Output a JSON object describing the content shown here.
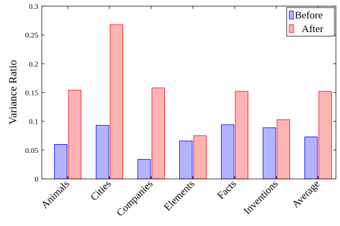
{
  "chart_data": {
    "type": "bar",
    "title": "",
    "xlabel": "",
    "ylabel": "Variance Ratio",
    "ylim": [
      0,
      0.3
    ],
    "yticks": [
      "0",
      "0.05",
      "0.1",
      "0.15",
      "0.2",
      "0.25",
      "0.3"
    ],
    "grid": false,
    "legend_position": "top-right",
    "categories": [
      "Animals",
      "Cities",
      "Companies",
      "Elements",
      "Facts",
      "Inventions",
      "Average"
    ],
    "series": [
      {
        "name": "Before",
        "values": [
          0.06,
          0.093,
          0.034,
          0.066,
          0.094,
          0.089,
          0.073
        ],
        "fill": "#b3b3ff",
        "stroke": "#0000ff"
      },
      {
        "name": "After",
        "values": [
          0.154,
          0.268,
          0.158,
          0.075,
          0.152,
          0.103,
          0.152
        ],
        "fill": "#ffb3b3",
        "stroke": "#ff0000"
      }
    ]
  }
}
